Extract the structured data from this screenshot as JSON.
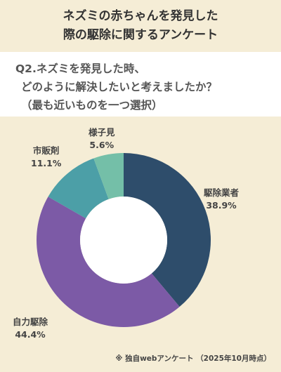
{
  "title": {
    "line1": "ネズミの赤ちゃんを発見した",
    "line2": "際の駆除に関するアンケート"
  },
  "question": {
    "line1": "Q2.ネズミを発見した時、",
    "line2": "どのように解決したいと考えましたか？",
    "line3": "（最も近いものを一つ選択）"
  },
  "chart_data": {
    "type": "pie",
    "categories": [
      "駆除業者",
      "自力駆除",
      "市販剤",
      "様子見"
    ],
    "values": [
      38.9,
      44.4,
      11.1,
      5.6
    ],
    "value_labels": [
      "38.9%",
      "44.4%",
      "11.1%",
      "5.6%"
    ],
    "colors": [
      "#2e4d6b",
      "#7c5aa6",
      "#4c9fa7",
      "#74bfa8"
    ],
    "donut": true,
    "start_angle": "top",
    "direction": "clockwise"
  },
  "footnote": "※ 独自webアンケート （2025年10月時点）"
}
